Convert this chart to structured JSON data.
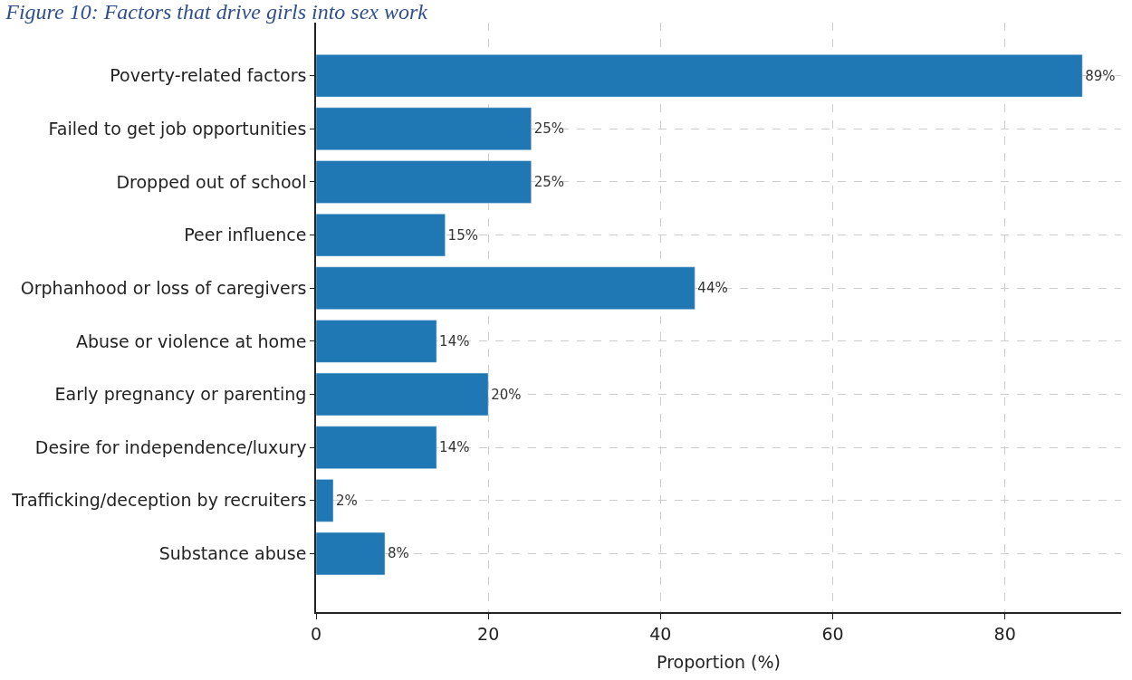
{
  "chart_data": {
    "type": "bar",
    "orientation": "horizontal",
    "title": "Figure 10: Factors that drive girls into sex work",
    "xlabel": "Proportion (%)",
    "categories": [
      "Poverty-related factors",
      "Failed to get job opportunities",
      "Dropped out of school",
      "Peer influence",
      "Orphanhood or loss of caregivers",
      "Abuse or violence at home",
      "Early pregnancy or parenting",
      "Desire for independence/luxury",
      "Trafficking/deception by recruiters",
      "Substance abuse"
    ],
    "values": [
      89,
      25,
      25,
      15,
      44,
      14,
      20,
      14,
      2,
      8
    ],
    "value_labels": [
      "89%",
      "25%",
      "25%",
      "15%",
      "44%",
      "14%",
      "20%",
      "14%",
      "2%",
      "8%"
    ],
    "color": "#1f77b4",
    "xlim": [
      0,
      93.5
    ],
    "xticks": [
      0,
      20,
      40,
      60,
      80
    ],
    "grid": true,
    "legend": false
  }
}
